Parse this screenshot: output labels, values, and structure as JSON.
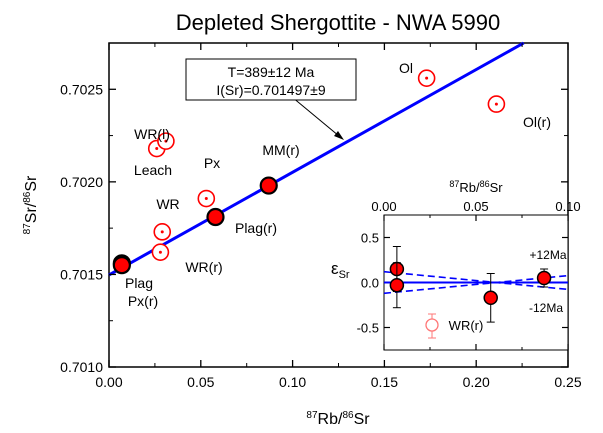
{
  "chart_data": [
    {
      "type": "scatter",
      "title": "Depleted Shergottite - NWA 5990",
      "xlabel": "87Rb/86Sr",
      "ylabel": "87Sr/86Sr",
      "xlim": [
        0.0,
        0.25
      ],
      "ylim": [
        0.701,
        0.70275
      ],
      "x_ticks": [
        "0.00",
        "0.05",
        "0.10",
        "0.15",
        "0.20",
        "0.25"
      ],
      "y_ticks": [
        "0.7010",
        "0.7015",
        "0.7020",
        "0.7025"
      ],
      "isochron": {
        "intercept": 0.701497,
        "slope": 0.005548,
        "label_line1": "T=389±12 Ma",
        "label_line2": "I(Sr)=0.701497±9",
        "color": "#0000ff"
      },
      "series": [
        {
          "marker": "filled-red-circle",
          "color": "#ff0000",
          "points": [
            {
              "label": "Plag",
              "x": 0.007,
              "y": 0.70156
            },
            {
              "label": "Plag(r)",
              "x": 0.007,
              "y": 0.70155
            },
            {
              "label": "Px(r)",
              "x": 0.058,
              "y": 0.70181
            },
            {
              "label": "MM(r)",
              "x": 0.087,
              "y": 0.70198
            }
          ]
        },
        {
          "marker": "open-red-circle-dot",
          "color": "#ff0000",
          "points": [
            {
              "label": "WR(l)",
              "x": 0.026,
              "y": 0.70218
            },
            {
              "label": "Leach",
              "x": 0.031,
              "y": 0.70222
            },
            {
              "label": "Px",
              "x": 0.053,
              "y": 0.70191
            },
            {
              "label": "WR",
              "x": 0.029,
              "y": 0.70173
            },
            {
              "label": "WR(r)",
              "x": 0.028,
              "y": 0.70162
            },
            {
              "label": "Ol",
              "x": 0.173,
              "y": 0.70256
            },
            {
              "label": "Ol(r)",
              "x": 0.211,
              "y": 0.70242
            }
          ]
        }
      ],
      "annotations": [
        "Plag",
        "Plag(r)",
        "Px(r)",
        "MM(r)",
        "WR(l)",
        "Leach",
        "Px",
        "WR",
        "WR(r)",
        "Ol",
        "Ol(r)"
      ]
    },
    {
      "type": "scatter",
      "title": "87Rb/86Sr",
      "ylabel": "εSr",
      "xlim": [
        0.0,
        0.1
      ],
      "ylim": [
        -0.75,
        0.75
      ],
      "x_ticks": [
        "0.00",
        "0.05",
        "0.10"
      ],
      "y_ticks": [
        "0.5",
        "0.0",
        "-0.5"
      ],
      "envelope_labels": [
        "+12Ma",
        "-12Ma"
      ],
      "legend_label": "WR(r)",
      "series": [
        {
          "marker": "filled-red-circle",
          "points": [
            {
              "x": 0.007,
              "y": 0.15,
              "err": 0.25
            },
            {
              "x": 0.007,
              "y": -0.03,
              "err": 0.25
            },
            {
              "x": 0.058,
              "y": -0.17,
              "err": 0.27
            },
            {
              "x": 0.087,
              "y": 0.05,
              "err": 0.1
            }
          ]
        }
      ]
    }
  ],
  "colors": {
    "isochron": "#0000ff",
    "marker": "#ff0000",
    "axis": "#000000"
  }
}
